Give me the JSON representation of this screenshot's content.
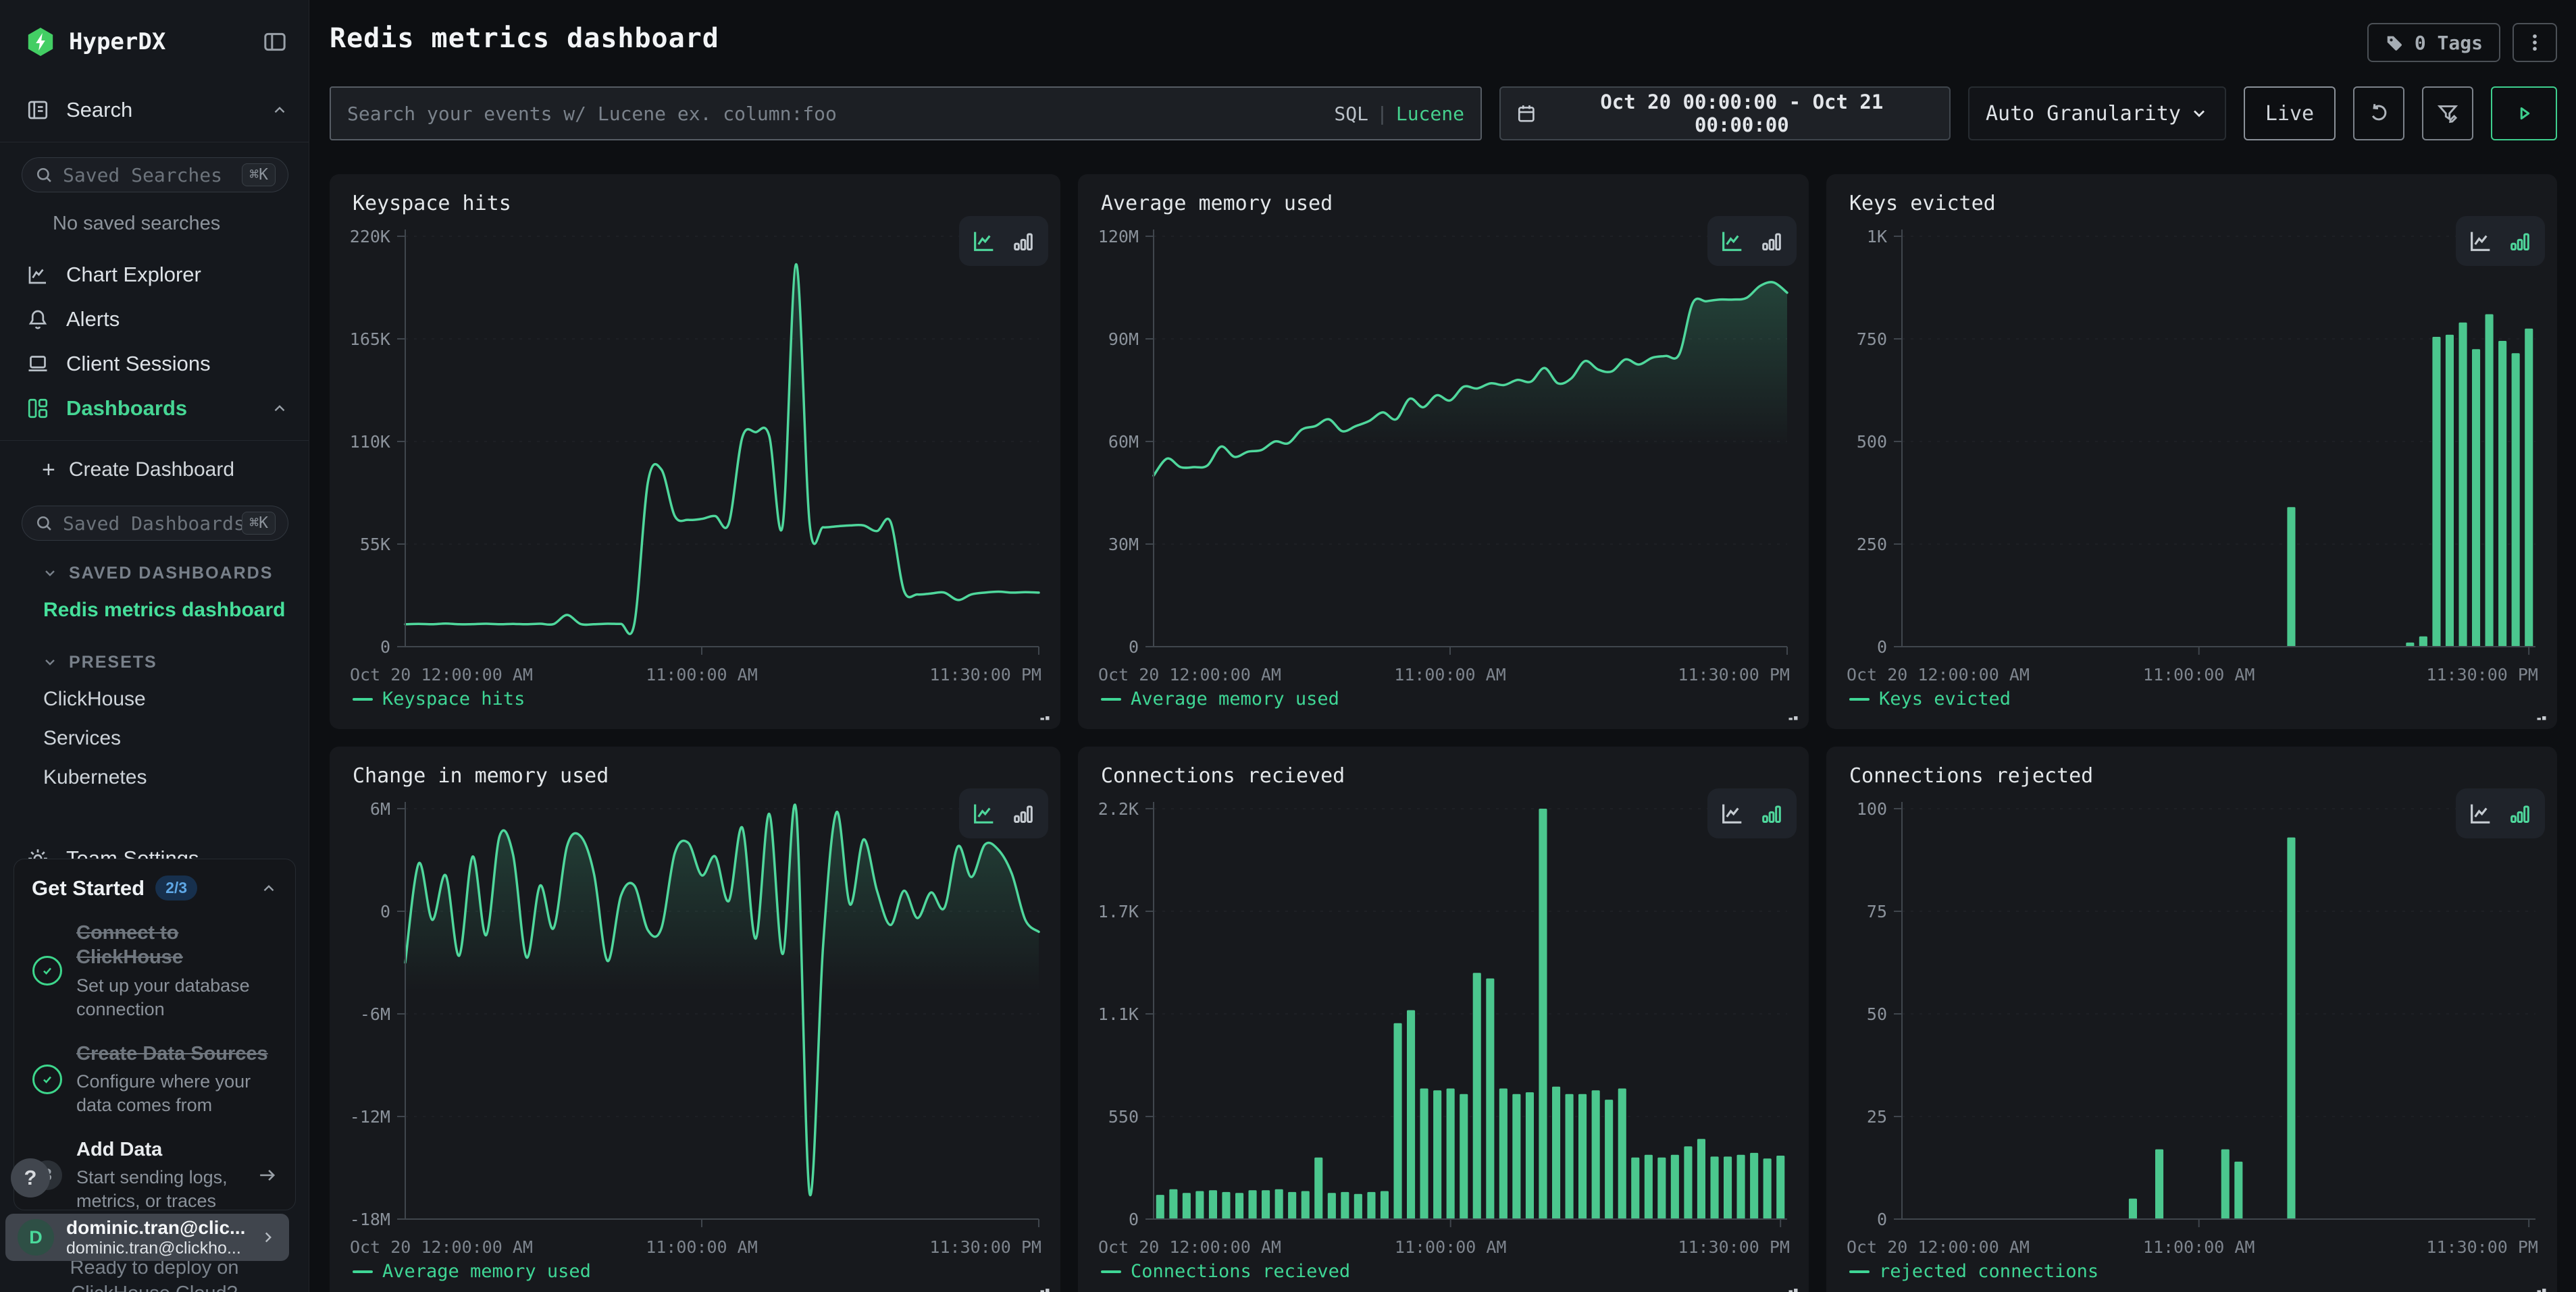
{
  "app": {
    "brand": "HyperDX",
    "page_title": "Redis metrics dashboard",
    "tags_button": "0 Tags"
  },
  "sidebar": {
    "search_section": {
      "label": "Search",
      "placeholder": "Saved Searches",
      "shortcut": "⌘K",
      "empty": "No saved searches"
    },
    "nav": [
      {
        "label": "Chart Explorer"
      },
      {
        "label": "Alerts"
      },
      {
        "label": "Client Sessions"
      },
      {
        "label": "Dashboards"
      }
    ],
    "create_dashboard": "Create Dashboard",
    "dashboards_search": {
      "placeholder": "Saved Dashboards",
      "shortcut": "⌘K"
    },
    "saved_dashboards_header": "SAVED DASHBOARDS",
    "saved_dashboards": [
      {
        "label": "Redis metrics dashboard"
      }
    ],
    "presets_header": "PRESETS",
    "presets": [
      {
        "label": "ClickHouse"
      },
      {
        "label": "Services"
      },
      {
        "label": "Kubernetes"
      }
    ],
    "team_settings": "Team Settings"
  },
  "get_started": {
    "title": "Get Started",
    "progress": "2/3",
    "steps": [
      {
        "title": "Connect to ClickHouse",
        "desc": "Set up your database connection",
        "done": true
      },
      {
        "title": "Create Data Sources",
        "desc": "Configure where your data comes from",
        "done": true
      },
      {
        "title": "Add Data",
        "desc": "Start sending logs, metrics, or traces",
        "done": false,
        "index": "3"
      }
    ]
  },
  "help_label": "?",
  "user": {
    "initial": "D",
    "name": "dominic.tran@clic...",
    "email": "dominic.tran@clickho..."
  },
  "background_text": {
    "line1": "Ready to deploy on",
    "line2": "ClickHouse Cloud?"
  },
  "toolbar": {
    "search_placeholder": "Search your events w/ Lucene ex. column:foo",
    "sql": "SQL",
    "lucene": "Lucene",
    "time_range": "Oct 20 00:00:00 - Oct 21 00:00:00",
    "granularity": "Auto Granularity",
    "live": "Live"
  },
  "colors": {
    "accent_green": "#46d694",
    "bar_green": "#4bc78e",
    "line_green": "#4fd79c",
    "logo_green": "#43ce64",
    "badge_blue": "#5ea7e5"
  },
  "chart_data": [
    {
      "type": "line",
      "title": "Keyspace hits",
      "series": "Keyspace hits",
      "ylabel": "",
      "xlabel": "",
      "ymin": 0,
      "ymax": 220,
      "unit": "K",
      "y_ticks": [
        {
          "v": 0,
          "label": "0"
        },
        {
          "v": 55,
          "label": "55K"
        },
        {
          "v": 110,
          "label": "110K"
        },
        {
          "v": 165,
          "label": "165K"
        },
        {
          "v": 220,
          "label": "220K"
        }
      ],
      "x_ticks": [
        "Oct 20 12:00:00 AM",
        "11:00:00 AM",
        "11:30:00 PM"
      ],
      "values": [
        12,
        12.2,
        12,
        12.4,
        12,
        12.1,
        12.3,
        12,
        12.2,
        12,
        12.3,
        12.1,
        17,
        12.2,
        12,
        12.3,
        12.2,
        12.5,
        88,
        95,
        70,
        68,
        68.5,
        70,
        66,
        112,
        115,
        113,
        65,
        205,
        66,
        64,
        64.5,
        65,
        65,
        62,
        67,
        30,
        28,
        28.5,
        29,
        25,
        28,
        29,
        29.5,
        29,
        29.2,
        29
      ]
    },
    {
      "type": "line",
      "title": "Average memory used",
      "series": "Average memory used",
      "ylabel": "",
      "xlabel": "",
      "ymin": 0,
      "ymax": 120,
      "unit": "M",
      "y_ticks": [
        {
          "v": 0,
          "label": "0"
        },
        {
          "v": 30,
          "label": "30M"
        },
        {
          "v": 60,
          "label": "60M"
        },
        {
          "v": 90,
          "label": "90M"
        },
        {
          "v": 120,
          "label": "120M"
        }
      ],
      "x_ticks": [
        "Oct 20 12:00:00 AM",
        "11:00:00 AM",
        "11:30:00 PM"
      ],
      "values": [
        50,
        55,
        52.5,
        52.5,
        53,
        58.5,
        55.5,
        57,
        57.5,
        60,
        59.5,
        63.5,
        64.5,
        66.5,
        63,
        64.5,
        66,
        68.5,
        66.5,
        72.5,
        70,
        73.5,
        72,
        76,
        75.5,
        77,
        76.5,
        78,
        77.5,
        81.5,
        77,
        78.5,
        83.5,
        81,
        80.5,
        84,
        82.5,
        84.5,
        85,
        85.5,
        100.5,
        101,
        101.5,
        101.5,
        102,
        105.5,
        106.5,
        103.5
      ]
    },
    {
      "type": "bar",
      "title": "Keys evicted",
      "series": "Keys evicted",
      "ylabel": "",
      "xlabel": "",
      "ymin": 0,
      "ymax": 1000,
      "unit": "",
      "y_ticks": [
        {
          "v": 0,
          "label": "0"
        },
        {
          "v": 250,
          "label": "250"
        },
        {
          "v": 500,
          "label": "500"
        },
        {
          "v": 750,
          "label": "750"
        },
        {
          "v": 1000,
          "label": "1K"
        }
      ],
      "x_ticks": [
        "Oct 20 12:00:00 AM",
        "11:00:00 AM",
        "11:30:00 PM"
      ],
      "values": [
        0,
        0,
        0,
        0,
        0,
        0,
        0,
        0,
        0,
        0,
        0,
        0,
        0,
        0,
        0,
        0,
        0,
        0,
        0,
        0,
        0,
        0,
        0,
        0,
        0,
        0,
        0,
        0,
        0,
        340,
        0,
        0,
        0,
        0,
        0,
        0,
        0,
        0,
        10,
        25,
        755,
        760,
        790,
        725,
        810,
        745,
        715,
        775
      ]
    },
    {
      "type": "line",
      "title": "Change in memory used",
      "series": "Average memory used",
      "ylabel": "",
      "xlabel": "",
      "ymin": -18,
      "ymax": 6,
      "unit": "M",
      "y_ticks": [
        {
          "v": -18,
          "label": "-18M"
        },
        {
          "v": -12,
          "label": "-12M"
        },
        {
          "v": -6,
          "label": "-6M"
        },
        {
          "v": 0,
          "label": "0"
        },
        {
          "v": 6,
          "label": "6M"
        }
      ],
      "x_ticks": [
        "Oct 20 12:00:00 AM",
        "11:00:00 AM",
        "11:30:00 PM"
      ],
      "values": [
        -3,
        2.8,
        -0.5,
        2.1,
        -2.6,
        3.2,
        -1.4,
        4.4,
        3.3,
        -2.7,
        1.5,
        -1,
        3.8,
        4.4,
        2.2,
        -2.9,
        0.9,
        1.5,
        -1.1,
        -1,
        3.4,
        4,
        2.1,
        3.2,
        0.6,
        4.9,
        -1.6,
        5.7,
        -2.5,
        5.9,
        -16.5,
        -2,
        5.8,
        0.4,
        4.2,
        1.2,
        -0.8,
        1.2,
        -0.4,
        1.1,
        0.2,
        3.8,
        2,
        3.9,
        3.6,
        2.2,
        -0.5,
        -1.2
      ]
    },
    {
      "type": "bar",
      "title": "Connections recieved",
      "series": "Connections recieved",
      "ylabel": "",
      "xlabel": "",
      "ymin": 0,
      "ymax": 2200,
      "unit": "",
      "y_ticks": [
        {
          "v": 0,
          "label": "0"
        },
        {
          "v": 550,
          "label": "550"
        },
        {
          "v": 1100,
          "label": "1.1K"
        },
        {
          "v": 1650,
          "label": "1.7K"
        },
        {
          "v": 2200,
          "label": "2.2K"
        }
      ],
      "x_ticks": [
        "Oct 20 12:00:00 AM",
        "11:00:00 AM",
        "11:30:00 PM"
      ],
      "values": [
        130,
        160,
        140,
        150,
        155,
        145,
        140,
        155,
        155,
        160,
        145,
        150,
        330,
        140,
        145,
        135,
        145,
        150,
        1050,
        1120,
        700,
        690,
        700,
        670,
        1320,
        1290,
        700,
        670,
        680,
        2200,
        710,
        670,
        670,
        690,
        640,
        700,
        330,
        345,
        330,
        345,
        390,
        430,
        335,
        335,
        345,
        355,
        325,
        340
      ]
    },
    {
      "type": "bar",
      "title": "Connections rejected",
      "series": "rejected connections",
      "ylabel": "",
      "xlabel": "",
      "ymin": 0,
      "ymax": 100,
      "unit": "",
      "y_ticks": [
        {
          "v": 0,
          "label": "0"
        },
        {
          "v": 25,
          "label": "25"
        },
        {
          "v": 50,
          "label": "50"
        },
        {
          "v": 75,
          "label": "75"
        },
        {
          "v": 100,
          "label": "100"
        }
      ],
      "x_ticks": [
        "Oct 20 12:00:00 AM",
        "11:00:00 AM",
        "11:30:00 PM"
      ],
      "values": [
        0,
        0,
        0,
        0,
        0,
        0,
        0,
        0,
        0,
        0,
        0,
        0,
        0,
        0,
        0,
        0,
        0,
        5,
        0,
        17,
        0,
        0,
        0,
        0,
        17,
        14,
        0,
        0,
        0,
        93,
        0,
        0,
        0,
        0,
        0,
        0,
        0,
        0,
        0,
        0,
        0,
        0,
        0,
        0,
        0,
        0,
        0,
        0
      ]
    }
  ]
}
